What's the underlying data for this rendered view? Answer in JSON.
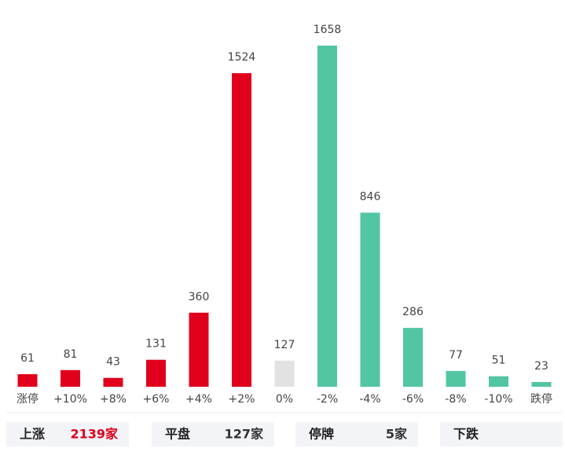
{
  "chart_data": {
    "type": "bar",
    "categories": [
      "涨停",
      "+10%",
      "+8%",
      "+6%",
      "+4%",
      "+2%",
      "0%",
      "-2%",
      "-4%",
      "-6%",
      "-8%",
      "-10%",
      "跌停"
    ],
    "values": [
      61,
      81,
      43,
      131,
      360,
      1524,
      127,
      1658,
      846,
      286,
      77,
      51,
      23
    ],
    "colors": [
      "#e0001b",
      "#e0001b",
      "#e0001b",
      "#e0001b",
      "#e0001b",
      "#e0001b",
      "#e2e2e2",
      "#52c5a3",
      "#52c5a3",
      "#52c5a3",
      "#52c5a3",
      "#52c5a3",
      "#52c5a3"
    ]
  },
  "summary": [
    {
      "label": "上涨",
      "value": "2139家",
      "color": "#e0001b"
    },
    {
      "label": "平盘",
      "value": "127家",
      "color": "#333333"
    },
    {
      "label": "停牌",
      "value": "5家",
      "color": "#333333"
    },
    {
      "label": "下跌"
    }
  ]
}
